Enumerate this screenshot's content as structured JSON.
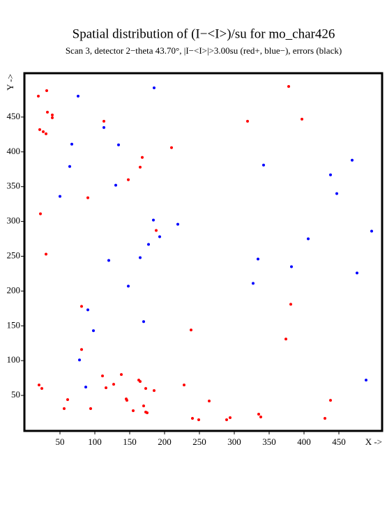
{
  "chart_data": {
    "type": "scatter",
    "title": "Spatial distribution of (I−<I>)/su for mo_char426",
    "subtitle": "Scan  3, detector 2−theta  43.70°, |I−<I>|>3.00su (red+, blue−), errors (black)",
    "x_label": "X ->",
    "y_label": "Y ->",
    "xlim": [
      -1,
      512
    ],
    "ylim": [
      -1,
      513
    ],
    "xticks": [
      50,
      100,
      150,
      200,
      250,
      300,
      350,
      400,
      450
    ],
    "yticks": [
      50,
      100,
      150,
      200,
      250,
      300,
      350,
      400,
      450
    ],
    "series": [
      {
        "color": "#ff0000",
        "x": [
          31,
          19,
          32,
          39,
          39,
          21,
          26,
          30,
          113,
          319,
          378,
          397,
          210,
          168,
          165,
          148,
          90,
          22,
          30,
          188,
          81,
          381,
          238,
          374,
          81,
          111,
          138,
          163,
          165,
          116,
          127,
          20,
          24,
          228,
          145,
          146,
          173,
          185,
          61,
          56,
          94,
          155,
          170,
          173,
          175,
          264,
          240,
          249,
          289,
          294,
          335,
          338,
          438,
          430
        ],
        "y": [
          488,
          480,
          457,
          453,
          449,
          432,
          429,
          426,
          444,
          444,
          494,
          447,
          406,
          392,
          378,
          360,
          334,
          311,
          253,
          287,
          178,
          181,
          144,
          131,
          116,
          78,
          80,
          72,
          70,
          61,
          66,
          65,
          60,
          65,
          45,
          43,
          60,
          57,
          44,
          31,
          31,
          28,
          35,
          26,
          25,
          42,
          17,
          15,
          15,
          18,
          23,
          19,
          43,
          17
        ]
      },
      {
        "color": "#0000ff",
        "x": [
          185,
          76,
          113,
          67,
          134,
          64,
          342,
          469,
          438,
          447,
          130,
          50,
          184,
          219,
          497,
          193,
          406,
          177,
          165,
          120,
          334,
          382,
          476,
          148,
          327,
          90,
          98,
          170,
          78,
          87,
          489
        ],
        "y": [
          492,
          480,
          435,
          411,
          410,
          379,
          381,
          388,
          367,
          340,
          352,
          336,
          302,
          296,
          286,
          278,
          275,
          267,
          248,
          244,
          246,
          235,
          226,
          207,
          211,
          173,
          143,
          156,
          101,
          62,
          72
        ]
      }
    ]
  }
}
